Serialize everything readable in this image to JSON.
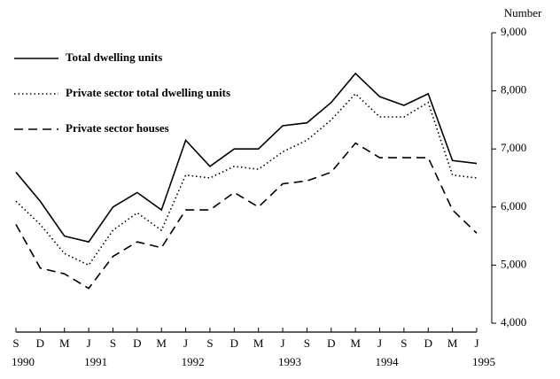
{
  "chart_data": {
    "type": "line",
    "y_axis_title": "Number",
    "categories": [
      "S",
      "D",
      "M",
      "J",
      "S",
      "D",
      "M",
      "J",
      "S",
      "D",
      "M",
      "J",
      "S",
      "D",
      "M",
      "J",
      "S",
      "D",
      "M",
      "J"
    ],
    "x_years": [
      "1990",
      null,
      null,
      "1991",
      null,
      null,
      null,
      "1992",
      null,
      null,
      null,
      "1993",
      null,
      null,
      null,
      "1994",
      null,
      null,
      null,
      "1995"
    ],
    "series": [
      {
        "name": "Total dwelling units",
        "color": "#000000",
        "style": "solid",
        "values": [
          6600,
          6100,
          5500,
          5400,
          6000,
          6250,
          5950,
          7150,
          6700,
          7000,
          7000,
          7400,
          7450,
          7800,
          8300,
          7900,
          7750,
          7950,
          6800,
          6750
        ]
      },
      {
        "name": "Private sector total dwelling units",
        "color": "#000000",
        "style": "dotted",
        "values": [
          6100,
          5700,
          5200,
          5000,
          5600,
          5900,
          5600,
          6550,
          6500,
          6700,
          6650,
          6950,
          7150,
          7500,
          7950,
          7550,
          7550,
          7800,
          6550,
          6500
        ]
      },
      {
        "name": "Private sector houses",
        "color": "#000000",
        "style": "dashed",
        "values": [
          5700,
          4950,
          4850,
          4600,
          5150,
          5400,
          5300,
          5950,
          5950,
          6250,
          6000,
          6400,
          6450,
          6600,
          7100,
          6850,
          6850,
          6850,
          5950,
          5550
        ]
      }
    ],
    "ylim": [
      4000,
      9000
    ],
    "yticks": [
      {
        "value": 4000,
        "label": "4,000"
      },
      {
        "value": 5000,
        "label": "5,000"
      },
      {
        "value": 6000,
        "label": "6,000"
      },
      {
        "value": 7000,
        "label": "7,000"
      },
      {
        "value": 8000,
        "label": "8,000"
      },
      {
        "value": 9000,
        "label": "9,000"
      }
    ],
    "y_axis_side": "right",
    "legend": "top-left"
  }
}
